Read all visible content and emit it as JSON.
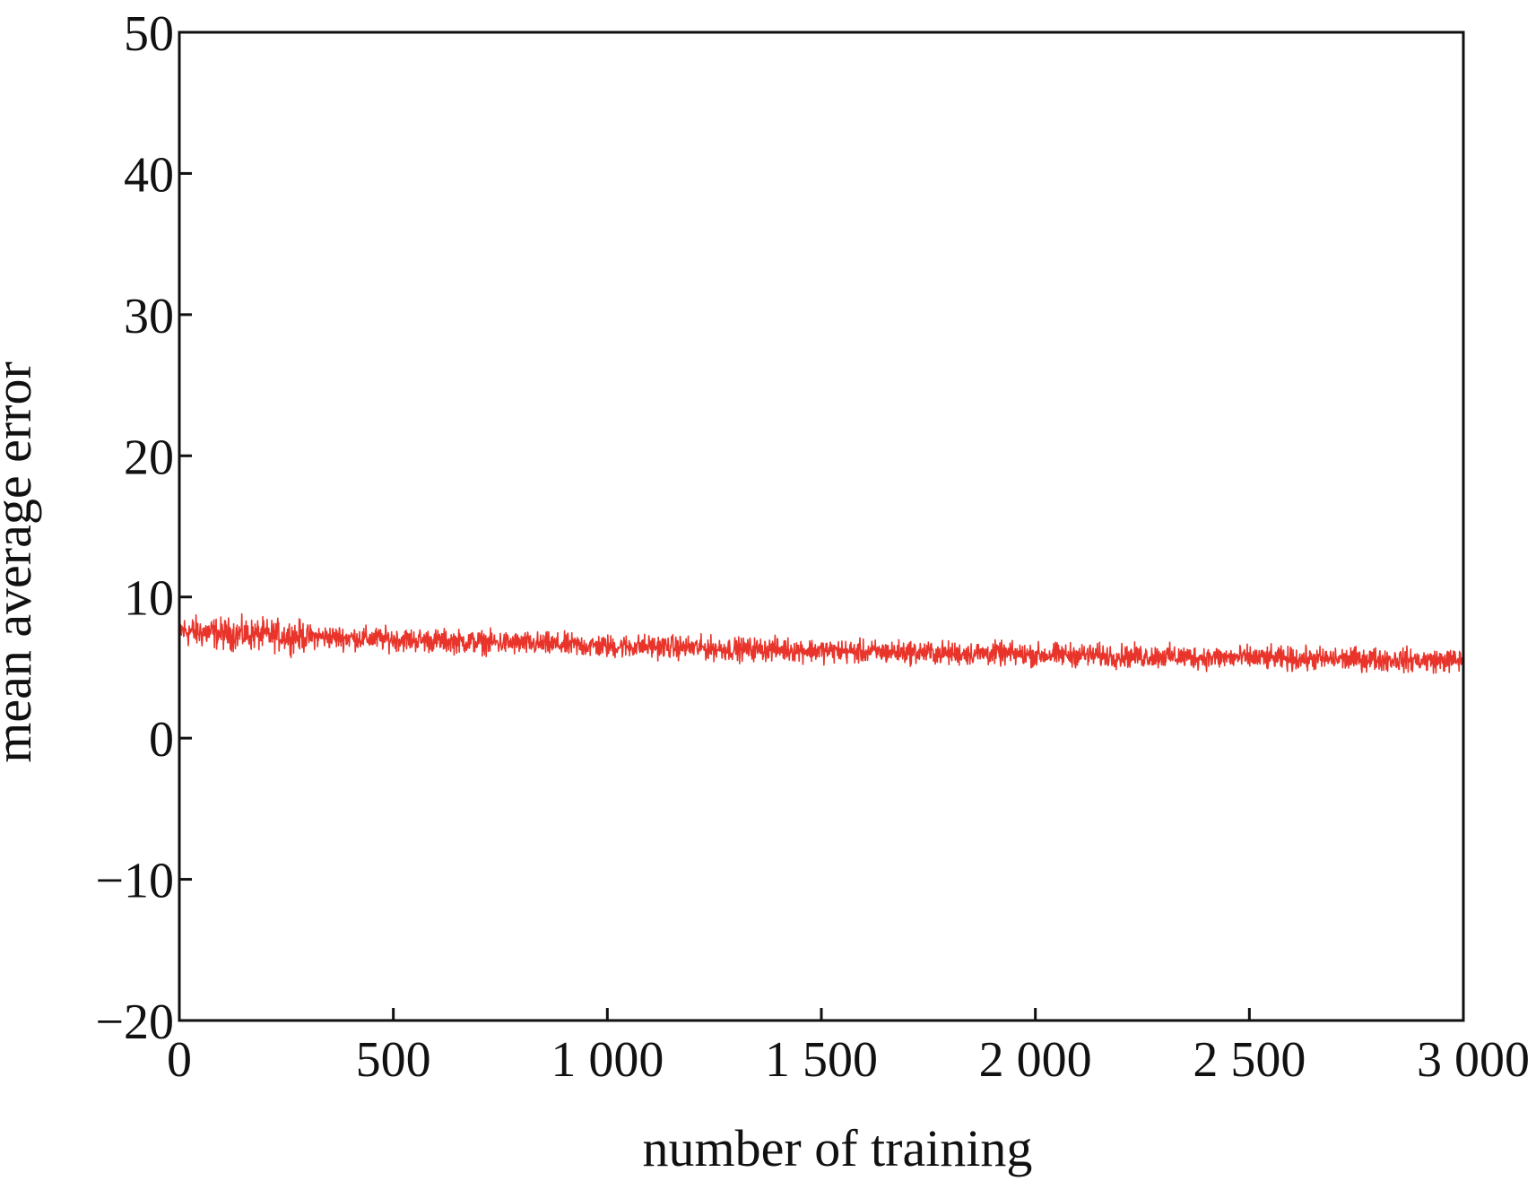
{
  "chart_data": {
    "type": "line",
    "title": "",
    "xlabel": "number of training",
    "ylabel": "mean average error",
    "xlim": [
      0,
      3000
    ],
    "ylim": [
      -20,
      50
    ],
    "x_ticks": [
      0,
      500,
      1000,
      1500,
      2000,
      2500,
      3000
    ],
    "x_tick_labels": [
      "0",
      "500",
      "1 000",
      "1 500",
      "2 000",
      "2 500",
      "3 000"
    ],
    "y_ticks": [
      -20,
      -10,
      0,
      10,
      20,
      30,
      40,
      50
    ],
    "y_tick_labels": [
      "−20",
      "−10",
      "0",
      "10",
      "20",
      "30",
      "40",
      "50"
    ],
    "grid": false,
    "legend": "none",
    "series": [
      {
        "color": "#e8342a",
        "x": [
          0,
          100,
          200,
          300,
          400,
          500,
          600,
          700,
          800,
          900,
          1000,
          1100,
          1200,
          1300,
          1400,
          1500,
          1600,
          1700,
          1800,
          1900,
          2000,
          2100,
          2200,
          2300,
          2400,
          2500,
          2600,
          2700,
          2800,
          2900,
          3000
        ],
        "values": [
          7.6,
          7.4,
          7.3,
          7.2,
          7.1,
          7.0,
          6.9,
          6.8,
          6.7,
          6.6,
          6.5,
          6.5,
          6.4,
          6.3,
          6.3,
          6.2,
          6.1,
          6.1,
          6.0,
          6.0,
          5.9,
          5.9,
          5.8,
          5.8,
          5.7,
          5.7,
          5.6,
          5.6,
          5.6,
          5.5,
          5.5
        ],
        "noise_amplitude": 1.2
      }
    ]
  }
}
